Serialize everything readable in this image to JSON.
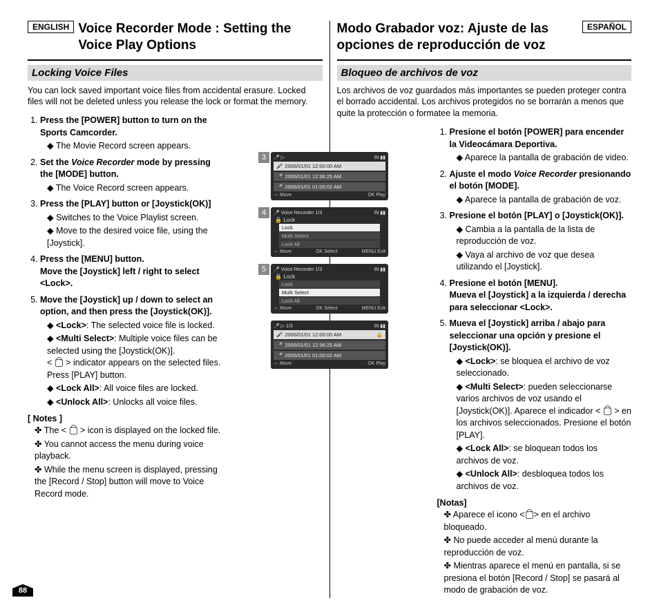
{
  "page_number": "88",
  "left": {
    "lang_badge": "ENGLISH",
    "title": "Voice Recorder Mode : Setting the Voice Play Options",
    "subhead": "Locking Voice Files",
    "intro": "You can lock saved important voice files from accidental erasure. Locked files will not be deleted unless you release the lock or format the memory.",
    "steps": [
      {
        "title": "Press the [POWER] button to turn on the Sports Camcorder.",
        "sub": [
          "The Movie Record screen appears."
        ]
      },
      {
        "title_html": "Set the <span class='italic'>Voice Recorder</span> mode by pressing the [MODE] button.",
        "sub": [
          "The Voice Record screen appears."
        ]
      },
      {
        "title": "Press the [PLAY] button or [Joystick(OK)]",
        "sub": [
          "Switches to the Voice Playlist screen.",
          "Move to the desired voice file, using the [Joystick]."
        ]
      },
      {
        "title": "Press the [MENU] button.\nMove the [Joystick] left / right to select <Lock>.",
        "sub": []
      },
      {
        "title": "Move the [Joystick] up / down to select an option, and then press the [Joystick(OK)].",
        "sub_html": [
          "<span class='bold'>&lt;Lock&gt;</span>: The selected voice file is locked.",
          "<span class='bold'>&lt;Multi Select&gt;</span>: Multiple voice files can be selected using the [Joystick(OK)].<br>&lt; <span class='lock-inline'></span> &gt; indicator appears on the selected files. Press [PLAY] button.",
          "<span class='bold'>&lt;Lock All&gt;</span>: All voice files are locked.",
          "<span class='bold'>&lt;Unlock All&gt;</span>: Unlocks all voice files."
        ]
      }
    ],
    "notes_head": "[ Notes ]",
    "notes_html": [
      "The &lt; <span class='lock-inline'></span> &gt; icon is displayed on the locked file.",
      "You cannot access the menu during voice playback.",
      "While the menu screen is displayed, pressing the [Record / Stop] button will move to Voice  Record mode."
    ]
  },
  "right": {
    "lang_badge": "ESPAÑOL",
    "title": "Modo Grabador voz: Ajuste de las opciones de reproducción de voz",
    "subhead": "Bloqueo de archivos de voz",
    "intro": "Los archivos de voz guardados más importantes se pueden proteger contra el borrado accidental. Los archivos protegidos no se borrarán a menos que quite la protección o formatee la memoria.",
    "steps": [
      {
        "title": "Presione el botón [POWER] para encender la Videocámara Deportiva.",
        "sub": [
          "Aparece la pantalla de grabación de video."
        ]
      },
      {
        "title_html": "Ajuste el modo <span class='italic'>Voice Recorder</span> presionando el botón [MODE].",
        "sub": [
          "Aparece la pantalla de grabación de voz."
        ]
      },
      {
        "title": "Presione el botón [PLAY] o [Joystick(OK)].",
        "sub": [
          "Cambia a la pantalla de la lista de reproducción de voz.",
          "Vaya al archivo de voz que desea utilizando el [Joystick]."
        ]
      },
      {
        "title": "Presione el botón [MENU].\nMueva el [Joystick] a la izquierda / derecha para seleccionar <Lock>.",
        "sub": []
      },
      {
        "title": "Mueva el [Joystick] arriba / abajo para seleccionar una opción y presione el [Joystick(OK)].",
        "sub_html": [
          "<span class='bold'>&lt;Lock&gt;</span>: se bloquea el archivo de voz seleccionado.",
          "<span class='bold'>&lt;Multi Select&gt;</span>: pueden seleccionarse varios archivos de voz usando el [Joystick(OK)]. Aparece el indicador &lt; <span class='lock-inline'></span> &gt; en los archivos seleccionados. Presione el botón [PLAY].",
          "<span class='bold'>&lt;Lock All&gt;</span>: se bloquean todos los archivos de voz.",
          "<span class='bold'>&lt;Unlock All&gt;</span>: desbloquea todos los archivos de voz."
        ]
      }
    ],
    "notes_head": "[Notas]",
    "notes_html": [
      "Aparece el icono &lt;<span class='lock-inline'></span>&gt; en el archivo bloqueado.",
      "No puede acceder al menú durante la reproducción de voz.",
      "Mientras aparece el menú en pantalla, si se presiona el botón [Record / Stop] se pasará al modo de grabación de voz."
    ]
  },
  "screenshots": {
    "s3": {
      "num": "3",
      "rows": [
        "2006/01/01 12:00:00 AM",
        "2006/01/01 12:36:25 AM",
        "2006/01/01 01:00:02 AM"
      ],
      "footer_left": "Move",
      "footer_right": "OK Play"
    },
    "s4": {
      "num": "4",
      "title": "Voice Recorder   1/3",
      "menu_label": "Lock",
      "items": [
        "Lock",
        "Multi Select",
        "Lock All"
      ],
      "selected": 0,
      "footer": [
        "Move",
        "OK Select",
        "MENU Exit"
      ]
    },
    "s5": {
      "num": "5",
      "title": "Voice Recorder   1/3",
      "menu_label": "Lock",
      "items": [
        "Lock",
        "Multi Select",
        "Lock All"
      ],
      "selected": 1,
      "footer": [
        "Move",
        "OK Select",
        "MENU Exit"
      ]
    },
    "s6": {
      "rows": [
        "2006/01/01 12:00:00 AM",
        "2006/01/01 12:36:25 AM",
        "2006/01/01 01:00:02 AM"
      ],
      "footer_left": "Move",
      "footer_right": "OK Play",
      "locked_row": 0
    }
  }
}
